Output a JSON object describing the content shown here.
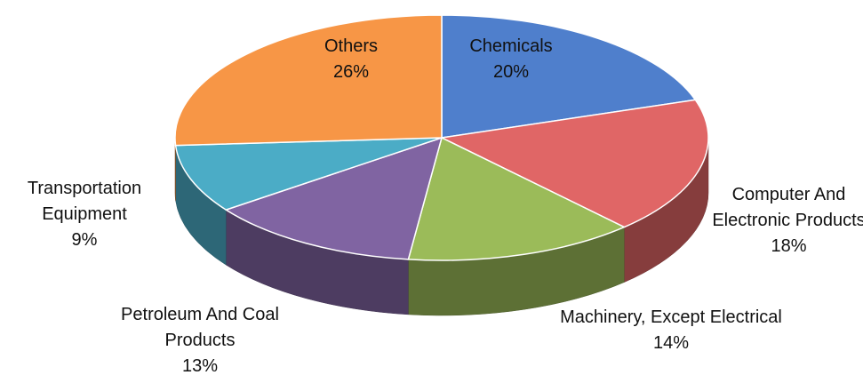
{
  "chart_data": {
    "type": "pie",
    "categories": [
      "Chemicals",
      "Computer And Electronic Products",
      "Machinery, Except Electrical",
      "Petroleum And Coal Products",
      "Transportation Equipment",
      "Others"
    ],
    "values": [
      20,
      18,
      14,
      13,
      9,
      26
    ],
    "value_labels": [
      "20%",
      "18%",
      "14%",
      "13%",
      "9%",
      "26%"
    ],
    "colors": [
      "#4f7fcc",
      "#e06666",
      "#9bbb59",
      "#8064a2",
      "#4bacc6",
      "#f79646"
    ],
    "3d": true
  }
}
